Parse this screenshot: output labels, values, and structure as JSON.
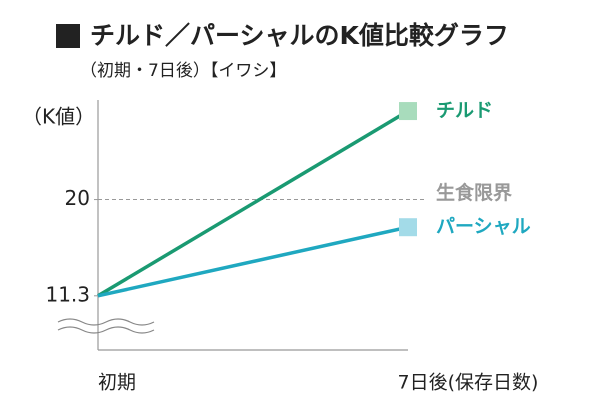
{
  "chart_data": {
    "type": "line",
    "title": "チルド／パーシャルのK値比較グラフ",
    "subtitle": "（初期・7日後）【イワシ】",
    "y_label": "（K値）",
    "categories": [
      "初期",
      "7日後(保存日数)"
    ],
    "series": [
      {
        "name": "チルド",
        "color": "#1a9a72",
        "marker_color": "#a8dcbc",
        "values": [
          11.3,
          28
        ]
      },
      {
        "name": "パーシャル",
        "color": "#1fa8c0",
        "marker_color": "#a3dbe8",
        "values": [
          11.3,
          17.5
        ]
      }
    ],
    "ylim": [
      6.4,
      29
    ],
    "yticks": [
      11.3,
      20
    ],
    "reference_line": {
      "value": 20,
      "label": "生食限界",
      "color": "#999999"
    }
  }
}
